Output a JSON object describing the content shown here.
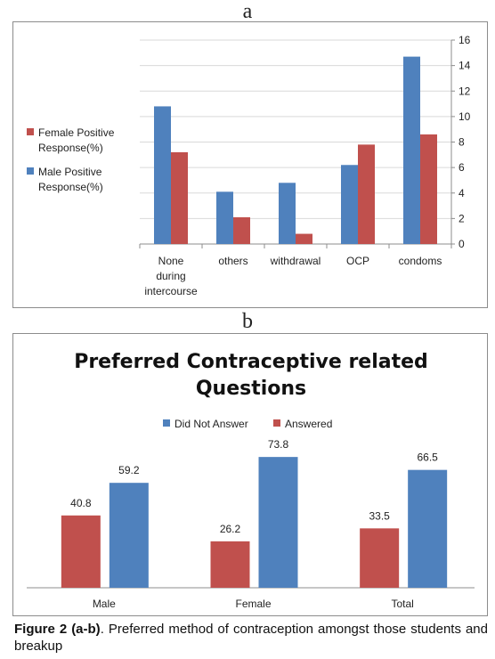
{
  "panels": {
    "a_label": "a",
    "b_label": "b"
  },
  "caption": {
    "label": "Figure 2 (a-b)",
    "text": ". Preferred method of contraception amongst those students and breakup"
  },
  "chart_data": [
    {
      "type": "bar",
      "title": "",
      "categories": [
        [
          "None",
          "during",
          "intercourse"
        ],
        [
          "others"
        ],
        [
          "withdrawal"
        ],
        [
          "OCP"
        ],
        [
          "condoms"
        ]
      ],
      "series": [
        {
          "name": "Male Positive Response(%)",
          "name_lines": [
            "Male Positive",
            "Response(%)"
          ],
          "color": "#4f81bd",
          "values": [
            10.8,
            4.1,
            4.8,
            6.2,
            14.7
          ]
        },
        {
          "name": "Female Positive Response(%)",
          "name_lines": [
            "Female Positive",
            "Response(%)"
          ],
          "color": "#c0504d",
          "values": [
            7.2,
            2.1,
            0.8,
            7.8,
            8.6
          ]
        }
      ],
      "ylim": [
        0,
        16
      ],
      "yticks": [
        "0",
        "2",
        "4",
        "6",
        "8",
        "10",
        "12",
        "14",
        "16"
      ],
      "y_axis_side": "right",
      "grid": true,
      "legend_position": "left"
    },
    {
      "type": "bar",
      "title": "Preferred Contraceptive related",
      "title_line2": "Questions",
      "categories": [
        "Male",
        "Female",
        "Total"
      ],
      "series": [
        {
          "name": "Answered",
          "color": "#c0504d",
          "values": [
            40.8,
            26.2,
            33.5
          ],
          "labels": [
            "40.8",
            "26.2",
            "33.5"
          ]
        },
        {
          "name": "Did Not Answer",
          "color": "#4f81bd",
          "values": [
            59.2,
            73.8,
            66.5
          ],
          "labels": [
            "59.2",
            "73.8",
            "66.5"
          ]
        }
      ],
      "legend_order": [
        "Did Not Answer",
        "Answered"
      ],
      "ylim": [
        0,
        100
      ],
      "grid": false,
      "legend_position": "top"
    }
  ]
}
